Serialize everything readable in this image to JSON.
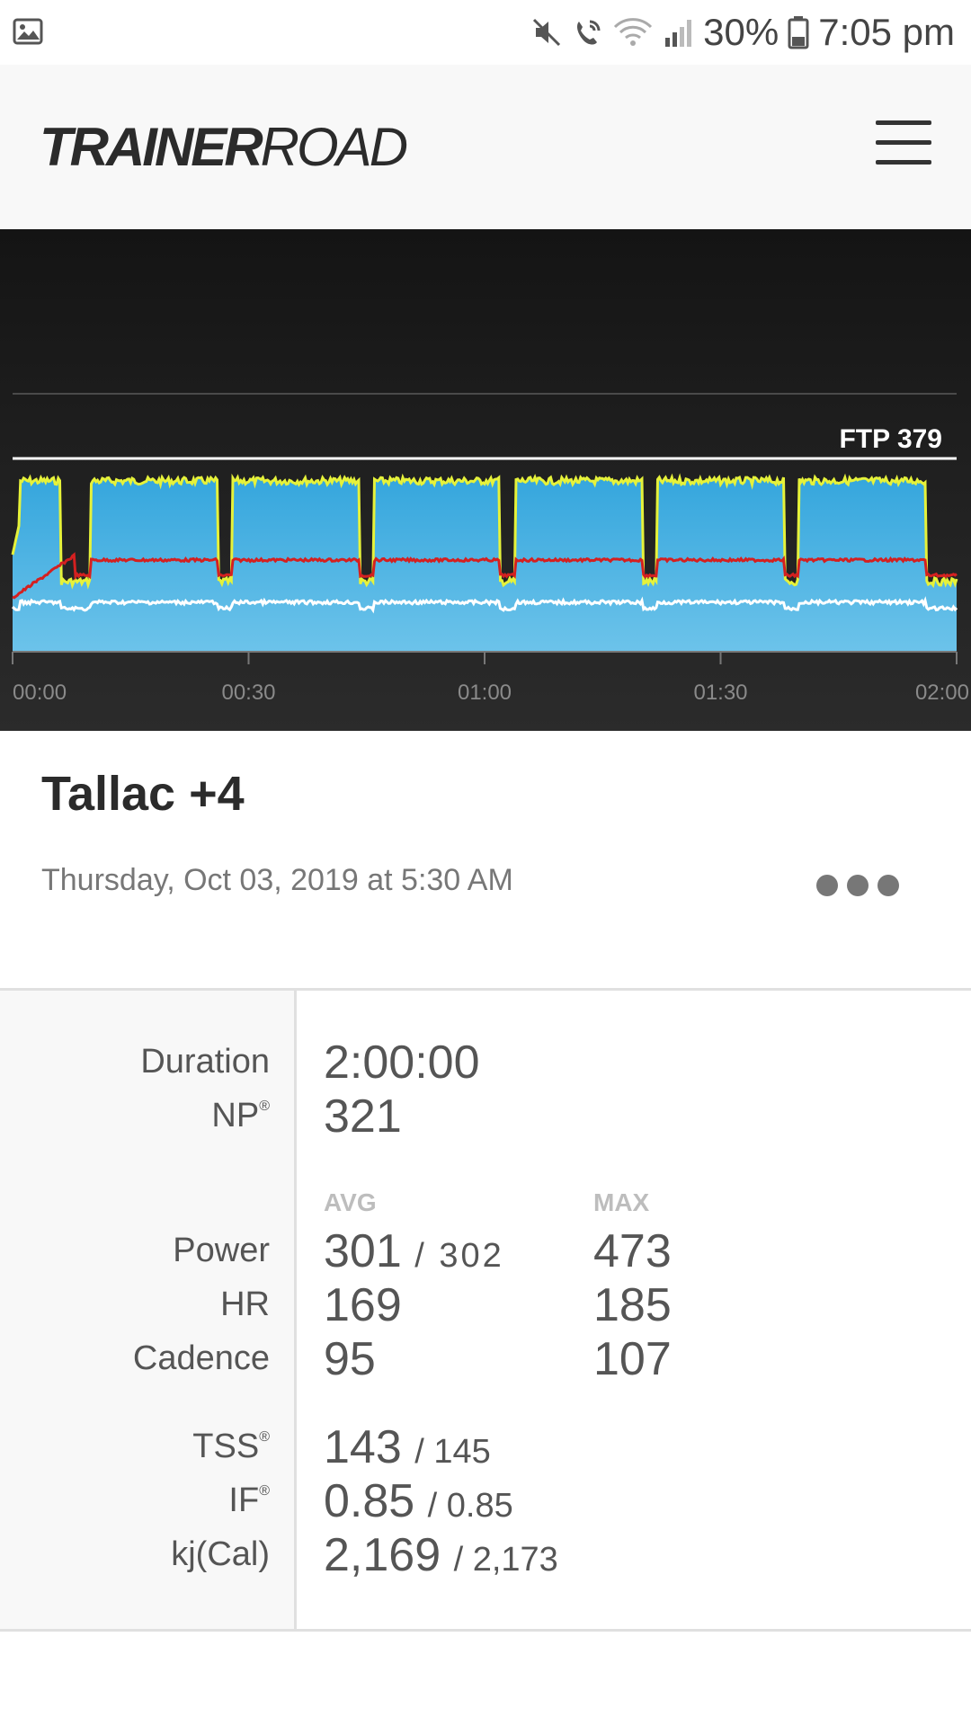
{
  "status_bar": {
    "battery_pct": "30%",
    "time": "7:05 pm",
    "icons": [
      "gallery-icon",
      "mute-icon",
      "wifi-call-icon",
      "wifi-icon",
      "signal-icon",
      "battery-icon"
    ]
  },
  "header": {
    "logo_bold": "TRAINER",
    "logo_regular": "ROAD",
    "menu_icon": "hamburger-menu-icon"
  },
  "chart_data": {
    "type": "area",
    "x_ticks": [
      "00:00",
      "00:30",
      "01:00",
      "01:30",
      "02:00"
    ],
    "ftp_label": "FTP 379",
    "ftp_value": 379,
    "x_range_minutes": [
      0,
      120
    ],
    "colors": {
      "power_fill": "#35a6dd",
      "target_line": "#e6f23a",
      "hr_line": "#d42020",
      "cadence_line": "#ffffff",
      "ftp_line": "#ffffff"
    },
    "intervals_minutes": [
      [
        1,
        6
      ],
      [
        10,
        26
      ],
      [
        28,
        44
      ],
      [
        46,
        62
      ],
      [
        64,
        80
      ],
      [
        82,
        98
      ],
      [
        100,
        116
      ]
    ],
    "series": [
      {
        "name": "Power"
      },
      {
        "name": "Heart Rate"
      },
      {
        "name": "Cadence"
      }
    ]
  },
  "workout": {
    "title": "Tallac +4",
    "date": "Thursday, Oct 03, 2019 at 5:30 AM",
    "more_icon": "more-options-icon"
  },
  "stats": {
    "duration_label": "Duration",
    "duration_value": "2:00:00",
    "np_label": "NP",
    "np_value": "321",
    "reg": "®",
    "avg_header": "AVG",
    "max_header": "MAX",
    "rows": [
      {
        "label": "Power",
        "avg": "301",
        "avg_sub": "/ 302",
        "max": "473"
      },
      {
        "label": "HR",
        "avg": "169",
        "max": "185"
      },
      {
        "label": "Cadence",
        "avg": "95",
        "max": "107"
      }
    ],
    "tss_label": "TSS",
    "tss_value": "143",
    "tss_sub": "/ 145",
    "if_label": "IF",
    "if_value": "0.85",
    "if_sub": "/ 0.85",
    "kj_label": "kj(Cal)",
    "kj_value": "2,169",
    "kj_sub": "/ 2,173"
  }
}
